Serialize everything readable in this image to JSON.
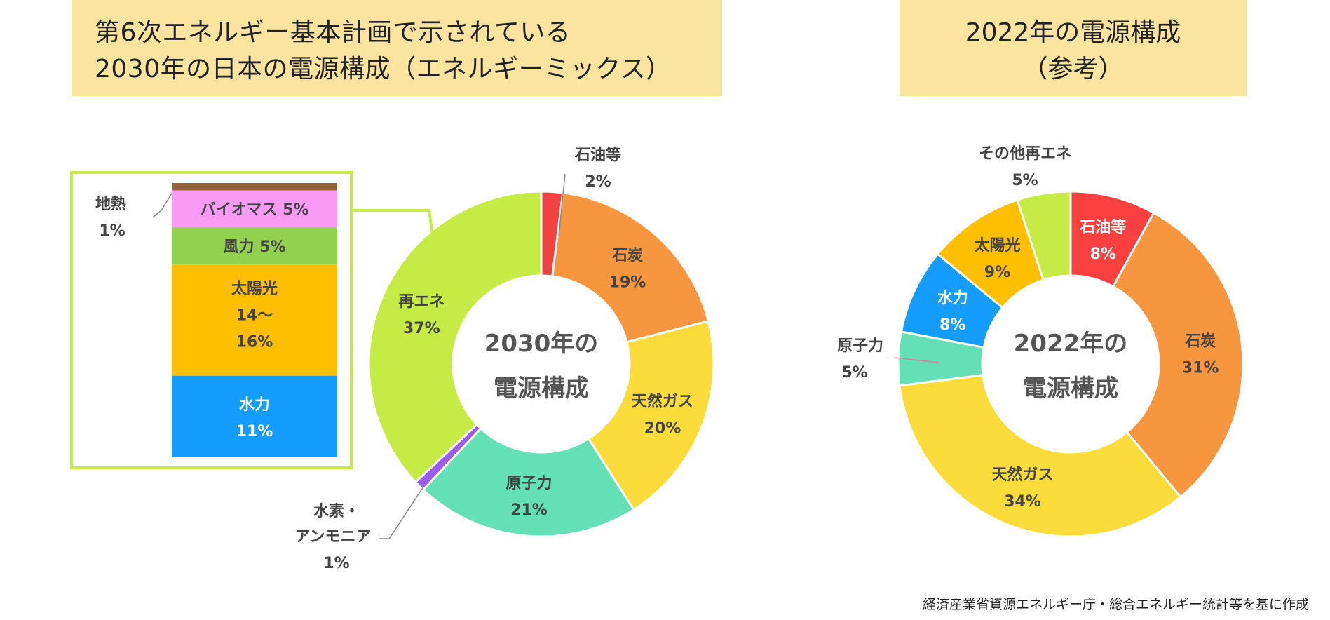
{
  "titles": {
    "left_line1": "第6次エネルギー基本計画で示されている",
    "left_line2": "2030年の日本の電源構成（エネルギーミックス）",
    "right_line1": "2022年の電源構成",
    "right_line2": "（参考）"
  },
  "source_note": "経済産業省資源エネルギー庁・総合エネルギー統計等を基に作成",
  "chart_data": [
    {
      "type": "pie",
      "center_label": [
        "2030年の",
        "電源構成"
      ],
      "slices": [
        {
          "label": "石油等",
          "value": 2,
          "value_text": "2%",
          "color": "#f24141"
        },
        {
          "label": "石炭",
          "value": 19,
          "value_text": "19%",
          "color": "#f7963f"
        },
        {
          "label": "天然ガス",
          "value": 20,
          "value_text": "20%",
          "color": "#fcdc3b"
        },
        {
          "label": "原子力",
          "value": 21,
          "value_text": "21%",
          "color": "#63e0b6"
        },
        {
          "label": "水素・アンモニア",
          "value": 1,
          "value_text": "1%",
          "color": "#9b5cf0"
        },
        {
          "label": "再エネ",
          "value": 37,
          "value_text": "37%",
          "color": "#c6eb44"
        }
      ],
      "renewables_breakdown": {
        "type": "stacked-bar",
        "segments": [
          {
            "label": "地熱",
            "value": 1,
            "value_text": "1%",
            "color": "#93613a"
          },
          {
            "label": "バイオマス",
            "value": 5,
            "value_text": "5%",
            "color": "#f99af7"
          },
          {
            "label": "風力",
            "value": 5,
            "value_text": "5%",
            "color": "#92d14f"
          },
          {
            "label": "太陽光",
            "value": 15,
            "value_text": "14〜16%",
            "color": "#fdbf00"
          },
          {
            "label": "水力",
            "value": 11,
            "value_text": "11%",
            "color": "#149dff"
          }
        ]
      }
    },
    {
      "type": "pie",
      "center_label": [
        "2022年の",
        "電源構成"
      ],
      "slices": [
        {
          "label": "石油等",
          "value": 8,
          "value_text": "8%",
          "color": "#fc3f3f"
        },
        {
          "label": "石炭",
          "value": 31,
          "value_text": "31%",
          "color": "#f7963f"
        },
        {
          "label": "天然ガス",
          "value": 34,
          "value_text": "34%",
          "color": "#fcdc3b"
        },
        {
          "label": "原子力",
          "value": 5,
          "value_text": "5%",
          "color": "#63e0b6"
        },
        {
          "label": "水力",
          "value": 8,
          "value_text": "8%",
          "color": "#149dff"
        },
        {
          "label": "太陽光",
          "value": 9,
          "value_text": "9%",
          "color": "#fdbf00"
        },
        {
          "label": "その他再エネ",
          "value": 5,
          "value_text": "5%",
          "color": "#c6eb44"
        }
      ]
    }
  ]
}
